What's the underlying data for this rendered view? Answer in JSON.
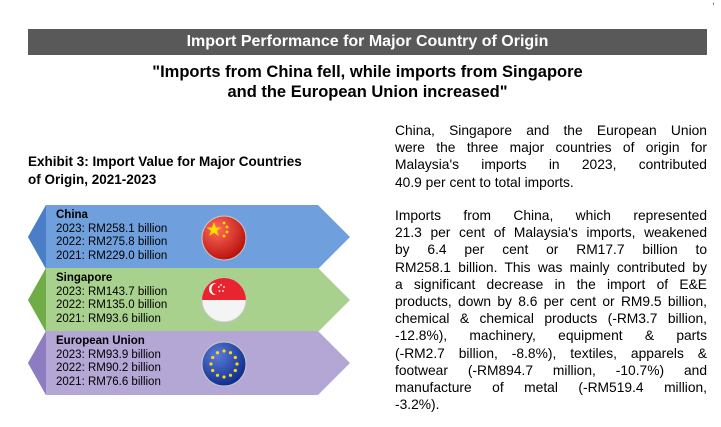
{
  "banner": {
    "title": "Import Performance for Major Country of Origin"
  },
  "headline": {
    "line1": "\"Imports from China fell, while imports from Singapore",
    "line2": "and the European Union increased\""
  },
  "exhibit": {
    "title_line1": "Exhibit 3: Import Value for Major Countries",
    "title_line2": "of Origin, 2021-2023",
    "countries": [
      {
        "name": "China",
        "lines": [
          "2023: RM258.1 billion",
          "2022: RM275.8 billion",
          "2021: RM229.0 billion"
        ],
        "color": "#6f9fdc",
        "flag": "china-flag"
      },
      {
        "name": "Singapore",
        "lines": [
          "2023: RM143.7 billion",
          "2022: RM135.0 billion",
          "2021: RM93.6 billion"
        ],
        "color": "#a8d08d",
        "flag": "singapore-flag"
      },
      {
        "name": "European Union",
        "lines": [
          "2023: RM93.9 billion",
          "2022: RM90.2 billion",
          "2021: RM76.6 billion"
        ],
        "color": "#b4a7d6",
        "flag": "eu-flag"
      }
    ]
  },
  "body": {
    "para1": [
      "China, Singapore and  the European Union",
      "were the three major countries of origin for",
      "Malaysia's imports in 2023, contributed",
      "40.9 per cent to total imports."
    ],
    "para2": [
      "Imports from China, which represented",
      "21.3 per cent of Malaysia's imports, weakened",
      "by 6.4 per cent or RM17.7 billion to",
      "RM258.1 billion. This was mainly contributed by",
      "a significant decrease in the import of E&E",
      "products, down by 8.6 per cent or RM9.5 billion,",
      "chemical & chemical products (-RM3.7 billion,",
      "-12.8%), machinery, equipment & parts",
      "(-RM2.7 billion, -8.8%), textiles, apparels &",
      "footwear (-RM894.7 million, -10.7%) and",
      "manufacture of metal (-RM519.4 million,",
      "-3.2%)."
    ]
  }
}
